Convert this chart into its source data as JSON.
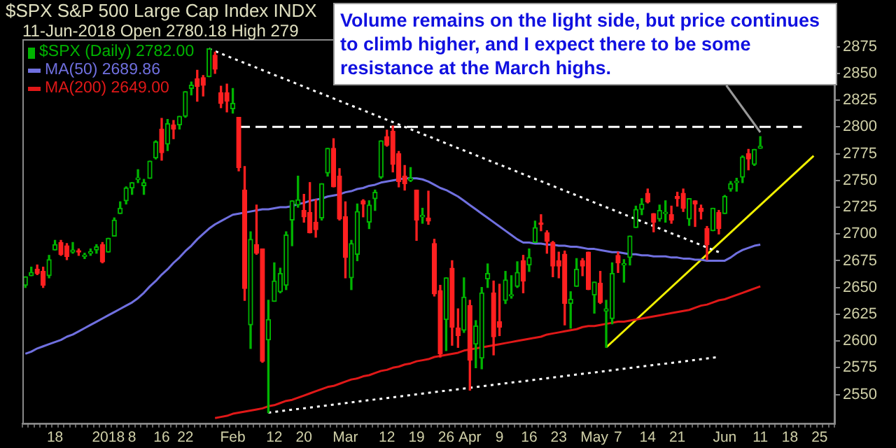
{
  "chart_data": {
    "type": "candlestick",
    "title": "$SPX S&P 500 Large Cap Index INDX",
    "subtitle": "11-Jun-2018 Open 2780.18 High 279",
    "categories": [
      null,
      null,
      null,
      null,
      null,
      "18",
      null,
      null,
      null,
      null,
      null,
      null,
      null,
      null,
      "2018",
      null,
      null,
      null,
      "8",
      null,
      null,
      null,
      null,
      "16",
      null,
      null,
      null,
      "22",
      null,
      null,
      null,
      null,
      null,
      null,
      null,
      "Feb",
      null,
      null,
      null,
      null,
      null,
      null,
      "12",
      null,
      null,
      null,
      null,
      "20",
      null,
      null,
      null,
      null,
      null,
      null,
      "Mar",
      null,
      null,
      null,
      null,
      null,
      null,
      "12",
      null,
      null,
      null,
      null,
      "19",
      null,
      null,
      null,
      null,
      "26",
      null,
      null,
      null,
      "Apr",
      null,
      null,
      null,
      null,
      "9",
      null,
      null,
      null,
      null,
      "16",
      null,
      null,
      null,
      null,
      "23",
      null,
      null,
      null,
      null,
      null,
      "May",
      null,
      null,
      null,
      "7",
      null,
      null,
      null,
      null,
      "14",
      null,
      null,
      null,
      null,
      "21",
      null,
      null,
      null,
      null,
      null,
      null,
      null,
      "Jun",
      null,
      null,
      null,
      null,
      null,
      "11",
      null,
      null,
      null,
      null,
      "18",
      null,
      null,
      null,
      null,
      "25",
      null,
      null
    ],
    "ylim": [
      2523,
      2882
    ],
    "yticks": [
      2550,
      2575,
      2600,
      2625,
      2650,
      2675,
      2700,
      2725,
      2750,
      2775,
      2800,
      2825,
      2850,
      2875
    ],
    "grid": false,
    "legend": "top left",
    "marker": "none",
    "annotations": [
      {
        "text": "Volume remains on the light side, but price continues to climb higher, and I expect there to be some resistance at the March highs.",
        "x": "11",
        "y": 2795
      }
    ],
    "series": [
      {
        "name": "$SPX (Daily) 2782.00",
        "color": "#00b400",
        "ohlc": [
          [
            2652,
            2660,
            2650,
            2660
          ],
          [
            2661,
            2669,
            2661,
            2664
          ],
          [
            2667,
            2671,
            2662,
            2663
          ],
          [
            2665,
            2669,
            2650,
            2652
          ],
          [
            2661,
            2680,
            2659,
            2676
          ],
          [
            2685,
            2694,
            2685,
            2690
          ],
          [
            2692,
            2694,
            2680,
            2681
          ],
          [
            2689,
            2691,
            2676,
            2679
          ],
          [
            2683,
            2692,
            2682,
            2685
          ],
          [
            2684,
            2686,
            2680,
            2683
          ],
          [
            2679,
            2682,
            2677,
            2680
          ],
          [
            2682,
            2686,
            2680,
            2683
          ],
          [
            2685,
            2690,
            2682,
            2688
          ],
          [
            2690,
            2692,
            2673,
            2674
          ],
          [
            2683,
            2696,
            2683,
            2696
          ],
          [
            2698,
            2715,
            2698,
            2713
          ],
          [
            2719,
            2730,
            2719,
            2724
          ],
          [
            2731,
            2744,
            2728,
            2743
          ],
          [
            2743,
            2748,
            2737,
            2748
          ],
          [
            2751,
            2760,
            2748,
            2751
          ],
          [
            2745,
            2751,
            2737,
            2748
          ],
          [
            2752,
            2768,
            2752,
            2768
          ],
          [
            2771,
            2787,
            2770,
            2786
          ],
          [
            2798,
            2808,
            2769,
            2776
          ],
          [
            2784,
            2807,
            2778,
            2803
          ],
          [
            2802,
            2806,
            2789,
            2798
          ],
          [
            2802,
            2810,
            2798,
            2810
          ],
          [
            2810,
            2833,
            2809,
            2833
          ],
          [
            2836,
            2842,
            2830,
            2839
          ],
          [
            2845,
            2853,
            2824,
            2838
          ],
          [
            2846,
            2848,
            2829,
            2839
          ],
          [
            2847,
            2873,
            2847,
            2873
          ],
          [
            2867,
            2870,
            2850,
            2854
          ],
          [
            2832,
            2838,
            2818,
            2822
          ],
          [
            2832,
            2840,
            2814,
            2824
          ],
          [
            2817,
            2836,
            2813,
            2822
          ],
          [
            2809,
            2809,
            2759,
            2762
          ],
          [
            2741,
            2763,
            2638,
            2649
          ],
          [
            2615,
            2702,
            2593,
            2695
          ],
          [
            2690,
            2727,
            2681,
            2682
          ],
          [
            2686,
            2686,
            2580,
            2581
          ],
          [
            2601,
            2638,
            2533,
            2620
          ],
          [
            2637,
            2673,
            2637,
            2656
          ],
          [
            2646,
            2668,
            2645,
            2663
          ],
          [
            2652,
            2702,
            2648,
            2699
          ],
          [
            2713,
            2731,
            2689,
            2731
          ],
          [
            2727,
            2754,
            2725,
            2732
          ],
          [
            2722,
            2737,
            2711,
            2716
          ],
          [
            2720,
            2748,
            2701,
            2701
          ],
          [
            2711,
            2732,
            2697,
            2704
          ],
          [
            2715,
            2747,
            2713,
            2747
          ],
          [
            2757,
            2780,
            2754,
            2780
          ],
          [
            2780,
            2789,
            2744,
            2744
          ],
          [
            2754,
            2761,
            2713,
            2714
          ],
          [
            2716,
            2730,
            2659,
            2678
          ],
          [
            2659,
            2694,
            2648,
            2691
          ],
          [
            2681,
            2728,
            2675,
            2721
          ],
          [
            2731,
            2732,
            2716,
            2728
          ],
          [
            2711,
            2731,
            2705,
            2727
          ],
          [
            2733,
            2741,
            2722,
            2739
          ],
          [
            2753,
            2787,
            2752,
            2787
          ],
          [
            2791,
            2797,
            2782,
            2783
          ],
          [
            2796,
            2801,
            2758,
            2765
          ],
          [
            2775,
            2777,
            2744,
            2749
          ],
          [
            2754,
            2764,
            2741,
            2747
          ],
          [
            2750,
            2762,
            2749,
            2752
          ],
          [
            2741,
            2741,
            2694,
            2713
          ],
          [
            2716,
            2724,
            2710,
            2717
          ],
          [
            2715,
            2740,
            2709,
            2712
          ],
          [
            2691,
            2695,
            2642,
            2644
          ],
          [
            2647,
            2652,
            2585,
            2588
          ],
          [
            2620,
            2659,
            2591,
            2659
          ],
          [
            2668,
            2675,
            2596,
            2613
          ],
          [
            2612,
            2630,
            2594,
            2605
          ],
          [
            2610,
            2659,
            2608,
            2641
          ],
          [
            2633,
            2638,
            2554,
            2582
          ],
          [
            2597,
            2619,
            2575,
            2614
          ],
          [
            2584,
            2650,
            2574,
            2645
          ],
          [
            2658,
            2672,
            2650,
            2663
          ],
          [
            2645,
            2656,
            2587,
            2604
          ],
          [
            2618,
            2653,
            2605,
            2613
          ],
          [
            2638,
            2665,
            2635,
            2657
          ],
          [
            2642,
            2661,
            2640,
            2642
          ],
          [
            2651,
            2674,
            2650,
            2664
          ],
          [
            2675,
            2680,
            2645,
            2656
          ],
          [
            2671,
            2686,
            2665,
            2678
          ],
          [
            2692,
            2712,
            2692,
            2706
          ],
          [
            2710,
            2718,
            2703,
            2709
          ],
          [
            2701,
            2703,
            2682,
            2693
          ],
          [
            2692,
            2693,
            2660,
            2670
          ],
          [
            2675,
            2683,
            2659,
            2670
          ],
          [
            2681,
            2684,
            2615,
            2635
          ],
          [
            2635,
            2646,
            2612,
            2639
          ],
          [
            2651,
            2677,
            2651,
            2667
          ],
          [
            2675,
            2677,
            2661,
            2670
          ],
          [
            2683,
            2683,
            2648,
            2648
          ],
          [
            2643,
            2655,
            2626,
            2655
          ],
          [
            2654,
            2665,
            2635,
            2636
          ],
          [
            2628,
            2638,
            2594,
            2630
          ],
          [
            2621,
            2673,
            2616,
            2663
          ],
          [
            2680,
            2683,
            2664,
            2673
          ],
          [
            2671,
            2676,
            2655,
            2672
          ],
          [
            2678,
            2698,
            2671,
            2698
          ],
          [
            2706,
            2726,
            2706,
            2723
          ],
          [
            2723,
            2733,
            2718,
            2728
          ],
          [
            2738,
            2742,
            2729,
            2730
          ],
          [
            2719,
            2719,
            2702,
            2711
          ],
          [
            2714,
            2727,
            2712,
            2722
          ],
          [
            2719,
            2731,
            2711,
            2720
          ],
          [
            2718,
            2726,
            2710,
            2713
          ],
          [
            2735,
            2739,
            2726,
            2733
          ],
          [
            2738,
            2742,
            2721,
            2724
          ],
          [
            2714,
            2733,
            2708,
            2733
          ],
          [
            2731,
            2731,
            2707,
            2728
          ],
          [
            2724,
            2727,
            2714,
            2721
          ],
          [
            2705,
            2707,
            2676,
            2690
          ],
          [
            2703,
            2724,
            2703,
            2724
          ],
          [
            2720,
            2722,
            2700,
            2705
          ],
          [
            2719,
            2736,
            2719,
            2735
          ],
          [
            2742,
            2749,
            2740,
            2747
          ],
          [
            2748,
            2752,
            2740,
            2749
          ],
          [
            2753,
            2773,
            2748,
            2772
          ],
          [
            2775,
            2779,
            2760,
            2770
          ],
          [
            2765,
            2779,
            2764,
            2779
          ],
          [
            2780,
            2791,
            2780,
            2782
          ],
          null,
          null,
          null,
          null,
          null,
          null,
          null,
          null,
          null,
          null,
          null,
          null
        ],
        "colors": [
          "#00b400",
          "#00b400",
          "#ff2020",
          "#ff2020",
          "#00b400",
          "#00b400",
          "#ff2020",
          "#ff2020",
          "#00b400",
          "#ff2020",
          "#00b400",
          "#00b400",
          "#00b400",
          "#ff2020",
          "#00b400",
          "#00b400",
          "#00b400",
          "#00b400",
          "#00b400",
          "#00b400",
          "#00b400",
          "#00b400",
          "#00b400",
          "#ff2020",
          "#00b400",
          "#ff2020",
          "#00b400",
          "#00b400",
          "#00b400",
          "#ff2020",
          "#ff2020",
          "#00b400",
          "#ff2020",
          "#ff2020",
          "#ff2020",
          "#00b400",
          "#ff2020",
          "#ff2020",
          "#00b400",
          "#ff2020",
          "#ff2020",
          "#00b400",
          "#00b400",
          "#00b400",
          "#00b400",
          "#00b400",
          "#00b400",
          "#ff2020",
          "#ff2020",
          "#ff2020",
          "#00b400",
          "#00b400",
          "#ff2020",
          "#ff2020",
          "#ff2020",
          "#00b400",
          "#00b400",
          "#ff2020",
          "#00b400",
          "#00b400",
          "#00b400",
          "#ff2020",
          "#ff2020",
          "#ff2020",
          "#ff2020",
          "#00b400",
          "#ff2020",
          "#00b400",
          "#ff2020",
          "#ff2020",
          "#ff2020",
          "#00b400",
          "#ff2020",
          "#ff2020",
          "#00b400",
          "#ff2020",
          "#00b400",
          "#00b400",
          "#00b400",
          "#ff2020",
          "#ff2020",
          "#00b400",
          "#00b400",
          "#00b400",
          "#ff2020",
          "#00b400",
          "#00b400",
          "#ff2020",
          "#ff2020",
          "#ff2020",
          "#ff2020",
          "#ff2020",
          "#00b400",
          "#00b400",
          "#ff2020",
          "#ff2020",
          "#00b400",
          "#ff2020",
          "#00b400",
          "#00b400",
          "#ff2020",
          "#00b400",
          "#00b400",
          "#00b400",
          "#00b400",
          "#ff2020",
          "#ff2020",
          "#00b400",
          "#00b400",
          "#ff2020",
          "#ff2020",
          "#ff2020",
          "#00b400",
          "#ff2020",
          "#ff2020",
          "#ff2020",
          "#00b400",
          "#ff2020",
          "#00b400",
          "#00b400",
          "#00b400",
          "#00b400",
          "#ff2020",
          "#00b400",
          "#00b400",
          null,
          null,
          null,
          null,
          null,
          null,
          null,
          null,
          null,
          null,
          null,
          null
        ]
      },
      {
        "name": "MA(50) 2689.86",
        "type": "line",
        "color": "#7070e0",
        "line_style": "solid",
        "values": [
          2588,
          2590,
          2593,
          2595,
          2597,
          2599,
          2601,
          2604,
          2606,
          2609,
          2612,
          2615,
          2618,
          2621,
          2624,
          2627,
          2630,
          2633,
          2636,
          2640,
          2645,
          2651,
          2656,
          2662,
          2667,
          2673,
          2678,
          2684,
          2689,
          2695,
          2700,
          2705,
          2709,
          2712,
          2715,
          2718,
          2719,
          2720,
          2721,
          2722,
          2723,
          2723,
          2724,
          2725,
          2725,
          2726,
          2728,
          2729,
          2731,
          2732,
          2733,
          2735,
          2736,
          2737,
          2739,
          2740,
          2742,
          2743,
          2745,
          2746,
          2748,
          2749,
          2750,
          2751,
          2752,
          2752,
          2752,
          2751,
          2749,
          2746,
          2743,
          2741,
          2738,
          2735,
          2731,
          2727,
          2723,
          2719,
          2715,
          2711,
          2707,
          2703,
          2699,
          2695,
          2692,
          2692,
          2691,
          2691,
          2690,
          2690,
          2689,
          2689,
          2688,
          2688,
          2687,
          2686,
          2686,
          2685,
          2684,
          2683,
          2683,
          2682,
          2681,
          2681,
          2680,
          2680,
          2679,
          2679,
          2679,
          2678,
          2678,
          2677,
          2677,
          2676,
          2676,
          2675,
          2675,
          2675,
          2675,
          2678,
          2682,
          2685,
          2687,
          2689,
          2690,
          null,
          null,
          null,
          null,
          null,
          null,
          null,
          null,
          null,
          null,
          null,
          null
        ]
      },
      {
        "name": "MA(200) 2649.00",
        "type": "line",
        "color": "#e01818",
        "line_style": "solid",
        "values": [
          null,
          null,
          null,
          null,
          null,
          null,
          null,
          null,
          null,
          null,
          null,
          null,
          null,
          null,
          null,
          null,
          null,
          null,
          null,
          null,
          null,
          null,
          null,
          null,
          null,
          null,
          null,
          null,
          null,
          null,
          null,
          null,
          2528,
          2529,
          2530,
          2532,
          2533,
          2534,
          2535,
          2536,
          2537,
          2539,
          2540,
          2542,
          2544,
          2545,
          2547,
          2549,
          2551,
          2553,
          2555,
          2557,
          2558,
          2560,
          2562,
          2564,
          2565,
          2567,
          2568,
          2570,
          2572,
          2573,
          2575,
          2576,
          2578,
          2579,
          2581,
          2582,
          2583,
          2585,
          2586,
          2587,
          2588,
          2589,
          2591,
          2592,
          2593,
          2594,
          2595,
          2596,
          2597,
          2598,
          2599,
          2600,
          2601,
          2602,
          2603,
          2604,
          2606,
          2607,
          2608,
          2609,
          2610,
          2611,
          2613,
          2614,
          2614,
          2615,
          2616,
          2617,
          2618,
          2618,
          2619,
          2620,
          2621,
          2622,
          2623,
          2624,
          2625,
          2626,
          2627,
          2628,
          2629,
          2631,
          2633,
          2634,
          2636,
          2638,
          2639,
          2641,
          2643,
          2645,
          2647,
          2649,
          2651,
          null,
          null,
          null,
          null,
          null,
          null,
          null,
          null,
          null,
          null,
          null,
          null
        ]
      },
      {
        "type": "line",
        "color": "#ffffff",
        "line_style": "dotted",
        "values": [
          null,
          null,
          null,
          null,
          null,
          null,
          null,
          null,
          null,
          null,
          null,
          null,
          null,
          null,
          null,
          null,
          null,
          null,
          null,
          null,
          null,
          null,
          null,
          null,
          null,
          null,
          null,
          null,
          null,
          null,
          null,
          2873,
          null,
          null,
          null,
          null,
          null,
          null,
          null,
          null,
          null,
          null,
          null,
          null,
          null,
          null,
          null,
          null,
          null,
          null,
          null,
          null,
          null,
          null,
          null,
          null,
          null,
          null,
          null,
          null,
          null,
          null,
          null,
          null,
          null,
          null,
          null,
          null,
          null,
          null,
          null,
          null,
          null,
          null,
          null,
          null,
          null,
          null,
          null,
          null,
          null,
          null,
          null,
          null,
          null,
          null,
          null,
          null,
          null,
          null,
          null,
          null,
          null,
          null,
          null,
          null,
          null,
          null,
          null,
          null,
          null,
          null,
          null,
          null,
          null,
          null,
          null,
          null,
          null,
          null,
          null,
          null,
          null,
          null,
          null,
          null,
          null,
          2683,
          null,
          null,
          null,
          null,
          null,
          null,
          null,
          null,
          null,
          null,
          null,
          null,
          null,
          null,
          null,
          null,
          null,
          null,
          null
        ]
      },
      {
        "type": "line",
        "color": "#ffffff",
        "line_style": "dotted",
        "values": [
          null,
          null,
          null,
          null,
          null,
          null,
          null,
          null,
          null,
          null,
          null,
          null,
          null,
          null,
          null,
          null,
          null,
          null,
          null,
          null,
          null,
          null,
          null,
          null,
          null,
          null,
          null,
          null,
          null,
          null,
          null,
          null,
          null,
          null,
          null,
          null,
          null,
          null,
          null,
          null,
          null,
          2533,
          null,
          null,
          null,
          null,
          null,
          null,
          null,
          null,
          null,
          null,
          null,
          null,
          null,
          null,
          null,
          null,
          null,
          null,
          null,
          null,
          null,
          null,
          null,
          null,
          null,
          null,
          null,
          null,
          null,
          null,
          null,
          null,
          null,
          null,
          null,
          null,
          null,
          null,
          null,
          null,
          null,
          null,
          null,
          null,
          null,
          null,
          null,
          null,
          null,
          null,
          null,
          null,
          null,
          null,
          null,
          null,
          null,
          null,
          null,
          null,
          null,
          null,
          null,
          null,
          null,
          null,
          null,
          null,
          null,
          null,
          null,
          null,
          null,
          null,
          null,
          2585,
          null,
          null,
          null,
          null,
          null,
          null,
          null,
          null,
          null,
          null,
          null,
          null,
          null,
          null,
          null,
          null,
          null,
          null,
          null
        ]
      },
      {
        "type": "line",
        "color": "#f0f000",
        "line_style": "solid",
        "values": [
          null,
          null,
          null,
          null,
          null,
          null,
          null,
          null,
          null,
          null,
          null,
          null,
          null,
          null,
          null,
          null,
          null,
          null,
          null,
          null,
          null,
          null,
          null,
          null,
          null,
          null,
          null,
          null,
          null,
          null,
          null,
          null,
          null,
          null,
          null,
          null,
          null,
          null,
          null,
          null,
          null,
          null,
          null,
          null,
          null,
          null,
          null,
          null,
          null,
          null,
          null,
          null,
          null,
          null,
          null,
          null,
          null,
          null,
          null,
          null,
          null,
          null,
          null,
          null,
          null,
          null,
          null,
          null,
          null,
          null,
          null,
          null,
          null,
          null,
          null,
          null,
          null,
          null,
          null,
          null,
          null,
          null,
          null,
          null,
          null,
          null,
          null,
          null,
          null,
          null,
          null,
          null,
          null,
          null,
          null,
          null,
          null,
          null,
          2594,
          null,
          null,
          null,
          null,
          null,
          null,
          null,
          null,
          null,
          null,
          null,
          null,
          null,
          null,
          null,
          null,
          null,
          null,
          null,
          null,
          null,
          null,
          null,
          null,
          null,
          null,
          null,
          null,
          null,
          null,
          null,
          null,
          null,
          null,
          2773,
          null,
          null,
          null
        ]
      },
      {
        "type": "line",
        "color": "#ffffff",
        "line_style": "dashed",
        "values": [
          null,
          null,
          null,
          null,
          null,
          null,
          null,
          null,
          null,
          null,
          null,
          null,
          null,
          null,
          null,
          null,
          null,
          null,
          null,
          null,
          null,
          null,
          null,
          null,
          null,
          null,
          null,
          null,
          null,
          null,
          null,
          null,
          null,
          null,
          null,
          null,
          2800,
          null,
          null,
          null,
          null,
          null,
          null,
          null,
          null,
          null,
          null,
          null,
          null,
          null,
          null,
          null,
          null,
          null,
          null,
          null,
          null,
          null,
          null,
          null,
          null,
          null,
          null,
          null,
          null,
          null,
          null,
          null,
          null,
          null,
          null,
          null,
          null,
          null,
          null,
          null,
          null,
          null,
          null,
          null,
          null,
          null,
          null,
          null,
          null,
          null,
          null,
          null,
          null,
          null,
          null,
          null,
          null,
          null,
          null,
          null,
          null,
          null,
          null,
          null,
          null,
          null,
          null,
          null,
          null,
          null,
          null,
          null,
          null,
          null,
          null,
          null,
          null,
          null,
          null,
          null,
          null,
          null,
          null,
          null,
          null,
          null,
          null,
          null,
          null,
          null,
          null,
          null,
          null,
          null,
          null,
          2800,
          null,
          null,
          null,
          null,
          null
        ]
      }
    ]
  }
}
